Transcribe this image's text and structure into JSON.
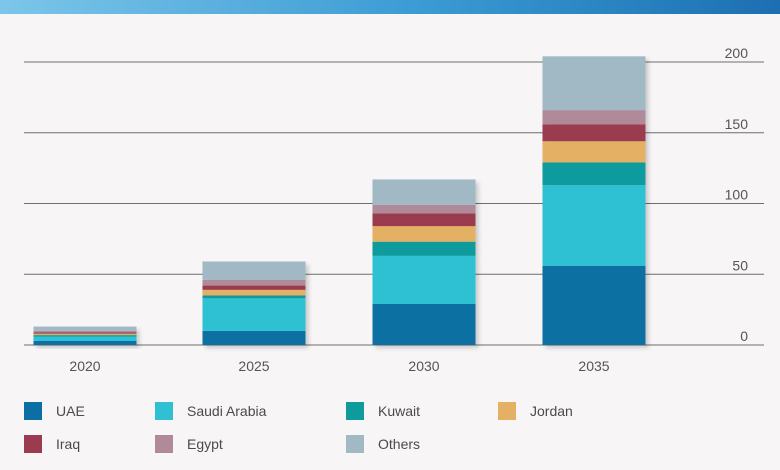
{
  "chart_data": {
    "type": "bar",
    "stacked": true,
    "categories": [
      "2020",
      "2025",
      "2030",
      "2035"
    ],
    "series": [
      {
        "name": "UAE",
        "color": "#0b6fa3",
        "values": [
          3,
          10,
          29,
          56
        ]
      },
      {
        "name": "Saudi Arabia",
        "color": "#2fc1d3",
        "values": [
          3,
          23,
          34,
          57
        ]
      },
      {
        "name": "Kuwait",
        "color": "#0e9b9e",
        "values": [
          1,
          2,
          10,
          16
        ]
      },
      {
        "name": "Jordan",
        "color": "#e4b063",
        "values": [
          1,
          4,
          11,
          15
        ]
      },
      {
        "name": "Iraq",
        "color": "#9b3b50",
        "values": [
          1,
          3,
          9,
          12
        ]
      },
      {
        "name": "Egypt",
        "color": "#b08a98",
        "values": [
          1,
          4,
          6,
          10
        ]
      },
      {
        "name": "Others",
        "color": "#a1b8c5",
        "values": [
          3,
          13,
          18,
          38
        ]
      }
    ],
    "ylim": [
      0,
      200
    ],
    "yticks": [
      "0",
      "50",
      "100",
      "150",
      "200"
    ],
    "yaxis_side": "right",
    "grid": true,
    "legend_position": "bottom"
  }
}
